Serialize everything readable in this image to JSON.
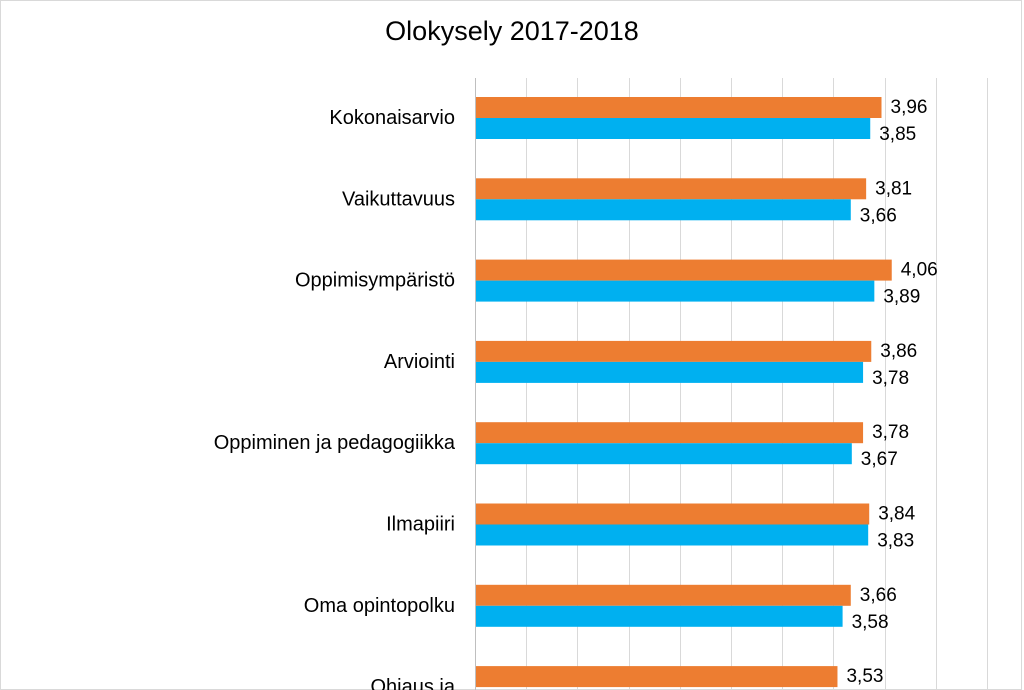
{
  "chart_data": {
    "type": "bar",
    "orientation": "horizontal",
    "title": "Olokysely 2017-2018",
    "xlabel": "",
    "ylabel": "",
    "xlim": [
      0,
      5
    ],
    "grid": true,
    "categories": [
      "Kokonaisarvio",
      "Vaikuttavuus",
      "Oppimisympäristö",
      "Arviointi",
      "Oppiminen ja pedagogiikka",
      "Ilmapiiri",
      "Oma opintopolku",
      "Ohjaus ja"
    ],
    "series": [
      {
        "color": "#ED7D31",
        "values": [
          3.96,
          3.81,
          4.06,
          3.86,
          3.78,
          3.84,
          3.66,
          3.53
        ],
        "labels": [
          "3,96",
          "3,81",
          "4,06",
          "3,86",
          "3,78",
          "3,84",
          "3,66",
          "3,53"
        ]
      },
      {
        "color": "#00B0F0",
        "values": [
          3.85,
          3.66,
          3.89,
          3.78,
          3.67,
          3.83,
          3.58,
          null
        ],
        "labels": [
          "3,85",
          "3,66",
          "3,89",
          "3,78",
          "3,67",
          "3,83",
          "3,58",
          null
        ]
      }
    ]
  }
}
